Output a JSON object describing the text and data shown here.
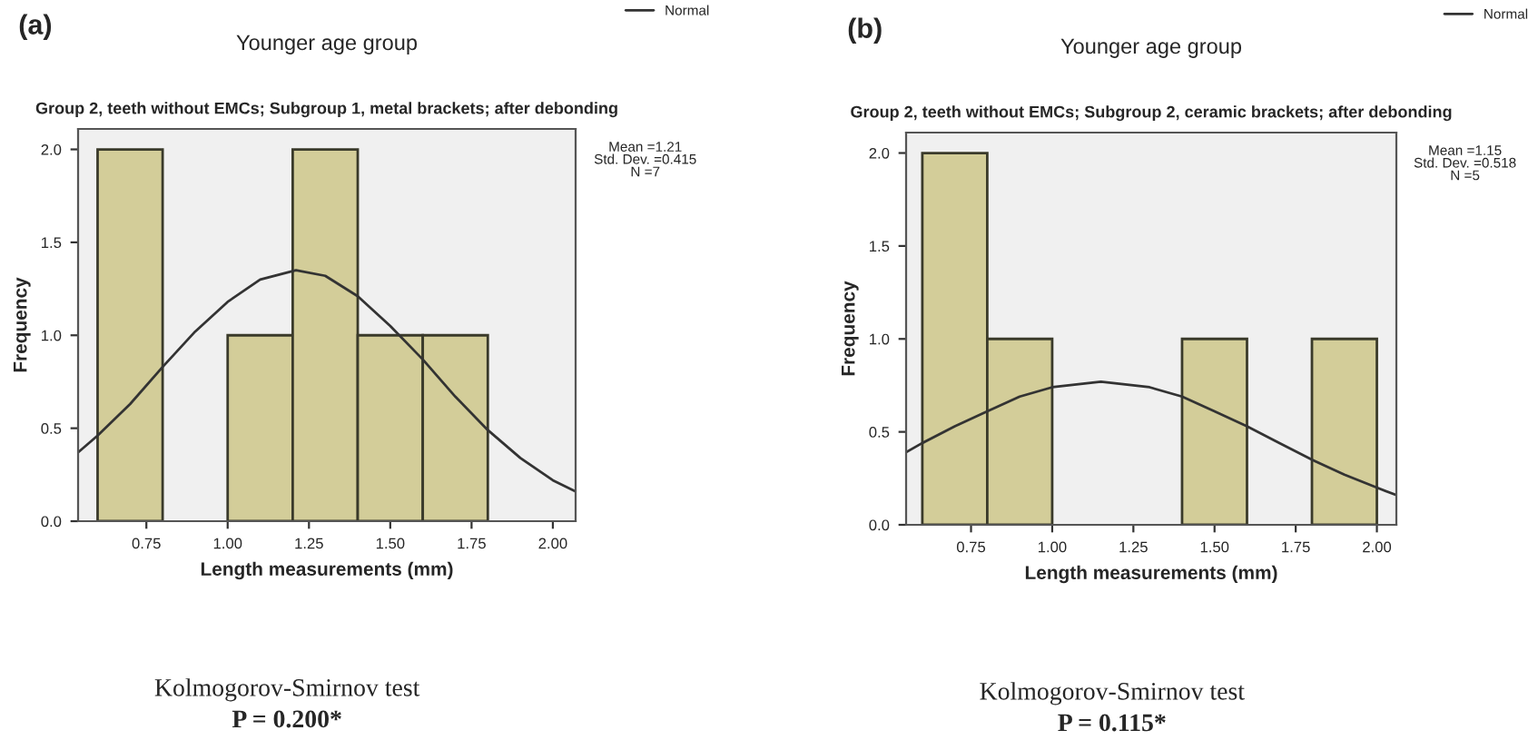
{
  "chart_data": [
    {
      "type": "histogram",
      "title": "Younger age group",
      "subtitle": "Group 2, teeth without EMCs; Subgroup 1, metal brackets; after debonding",
      "xlabel": "Length measurements (mm)",
      "ylabel": "Frequency",
      "bins": [
        0.6,
        0.8,
        1.0,
        1.2,
        1.4,
        1.6,
        1.8
      ],
      "values": [
        2,
        0,
        1,
        2,
        1,
        1
      ],
      "color": "#d3cd99",
      "series": [
        {
          "name": "Normal",
          "type": "line",
          "color": "#333333",
          "x": [
            0.54,
            0.6,
            0.7,
            0.8,
            0.9,
            1.0,
            1.1,
            1.21,
            1.3,
            1.4,
            1.5,
            1.6,
            1.7,
            1.8,
            1.9,
            2.0,
            2.07
          ],
          "values": [
            0.37,
            0.46,
            0.63,
            0.83,
            1.02,
            1.18,
            1.3,
            1.35,
            1.32,
            1.21,
            1.05,
            0.87,
            0.67,
            0.49,
            0.34,
            0.22,
            0.16
          ]
        }
      ],
      "xlim": [
        0.54,
        2.07
      ],
      "ylim": [
        0,
        2.11
      ],
      "xticks": [
        {
          "value": 0.75,
          "label": "0.75"
        },
        {
          "value": 1.0,
          "label": "1.00"
        },
        {
          "value": 1.25,
          "label": "1.25"
        },
        {
          "value": 1.5,
          "label": "1.50"
        },
        {
          "value": 1.75,
          "label": "1.75"
        },
        {
          "value": 2.0,
          "label": "2.00"
        }
      ],
      "yticks": [
        {
          "value": 0,
          "label": "0.0"
        },
        {
          "value": 0.5,
          "label": "0.5"
        },
        {
          "value": 1.0,
          "label": "1.0"
        },
        {
          "value": 1.5,
          "label": "1.5"
        },
        {
          "value": 2.0,
          "label": "2.0"
        }
      ],
      "grid": false,
      "legend": "top right",
      "annotations": [
        "(a)",
        "Mean =1.21\nStd. Dev. =0.415\nN =7",
        "Kolmogorov-Smirnov test",
        "P = 0.200*"
      ]
    },
    {
      "type": "histogram",
      "title": "Younger age group",
      "subtitle": "Group 2, teeth without EMCs; Subgroup 2, ceramic brackets; after debonding",
      "xlabel": "Length measurements (mm)",
      "ylabel": "Frequency",
      "bins": [
        0.6,
        0.8,
        1.0,
        1.2,
        1.4,
        1.6,
        1.8,
        2.0
      ],
      "values": [
        2,
        1,
        0,
        0,
        1,
        0,
        1
      ],
      "color": "#d3cd99",
      "series": [
        {
          "name": "Normal",
          "type": "line",
          "color": "#333333",
          "x": [
            0.55,
            0.6,
            0.7,
            0.8,
            0.9,
            1.0,
            1.15,
            1.3,
            1.4,
            1.5,
            1.6,
            1.7,
            1.8,
            1.9,
            2.0,
            2.06
          ],
          "values": [
            0.39,
            0.44,
            0.53,
            0.61,
            0.69,
            0.74,
            0.77,
            0.74,
            0.69,
            0.61,
            0.53,
            0.44,
            0.35,
            0.27,
            0.2,
            0.16
          ]
        }
      ],
      "xlim": [
        0.55,
        2.06
      ],
      "ylim": [
        0,
        2.11
      ],
      "xticks": [
        {
          "value": 0.75,
          "label": "0.75"
        },
        {
          "value": 1.0,
          "label": "1.00"
        },
        {
          "value": 1.25,
          "label": "1.25"
        },
        {
          "value": 1.5,
          "label": "1.50"
        },
        {
          "value": 1.75,
          "label": "1.75"
        },
        {
          "value": 2.0,
          "label": "2.00"
        }
      ],
      "yticks": [
        {
          "value": 0,
          "label": "0.0"
        },
        {
          "value": 0.5,
          "label": "0.5"
        },
        {
          "value": 1.0,
          "label": "1.0"
        },
        {
          "value": 1.5,
          "label": "1.5"
        },
        {
          "value": 2.0,
          "label": "2.0"
        }
      ],
      "grid": false,
      "legend": "top right",
      "annotations": [
        "(b)",
        "Mean =1.15\nStd. Dev. =0.518\nN =5",
        "Kolmogorov-Smirnov test",
        "P = 0.115*"
      ]
    }
  ]
}
